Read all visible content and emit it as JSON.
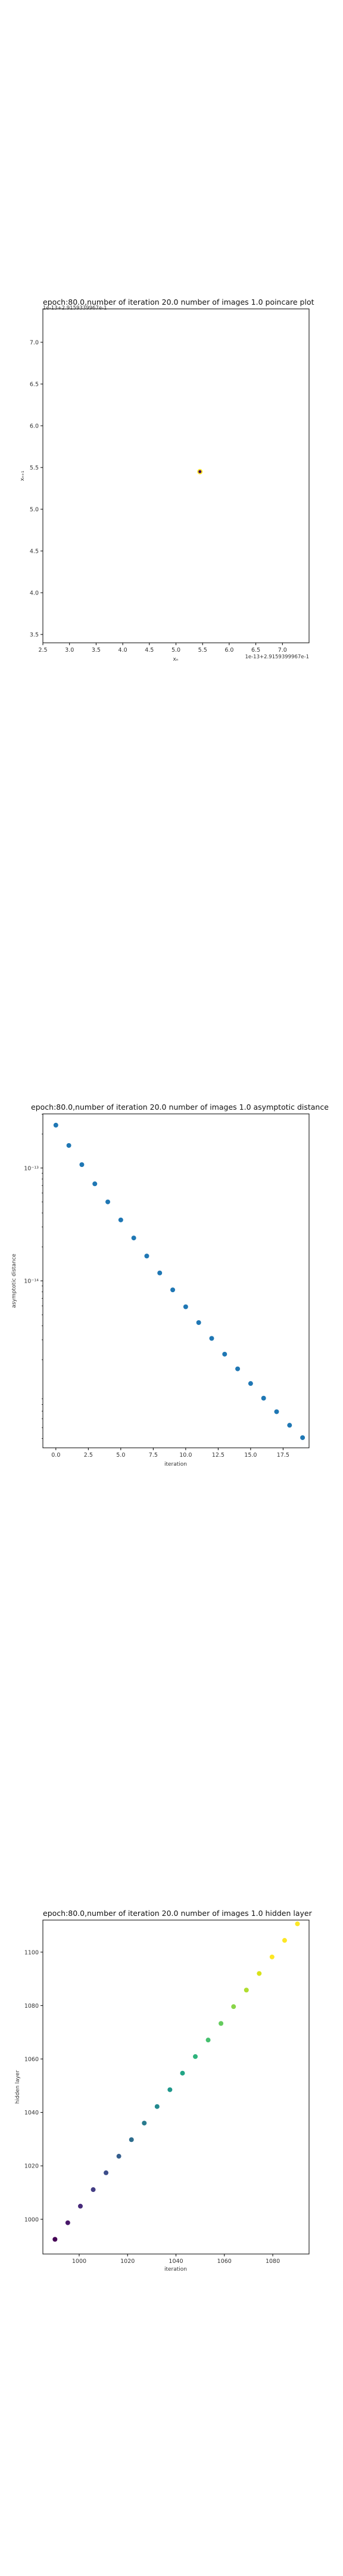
{
  "chart_data": [
    {
      "type": "scatter",
      "title": "epoch:80.0,number of iteration 20.0  number of images 1.0 poincare plot",
      "overlay_text": "1e-13+2.9159339967e-1",
      "xlabel": "xₙ",
      "ylabel": "xₙ₊₁",
      "offset_text": "1e-13+2.9159399967e-1",
      "xlim": [
        2.5,
        7.5
      ],
      "ylim": [
        3.4,
        7.4
      ],
      "xticks": [
        "2.5",
        "3.0",
        "3.5",
        "4.0",
        "4.5",
        "5.0",
        "5.5",
        "6.0",
        "6.5",
        "7.0"
      ],
      "yticks": [
        "3.5",
        "4.0",
        "4.5",
        "5.0",
        "5.5",
        "6.0",
        "6.5",
        "7.0"
      ],
      "points": [
        {
          "x": 5.45,
          "y": 5.45,
          "color": "#fde725"
        },
        {
          "x": 5.45,
          "y": 5.45,
          "color": "#440154"
        }
      ]
    },
    {
      "type": "scatter",
      "title": "epoch:80.0,number of iteration 20.0  number of images 1.0 asymptotic distance",
      "xlabel": "iteration",
      "ylabel": "asymptotic distance",
      "yscale": "log",
      "xlim": [
        -1,
        19.5
      ],
      "xticks": [
        "0.0",
        "2.5",
        "5.0",
        "7.5",
        "10.0",
        "12.5",
        "15.0",
        "17.5"
      ],
      "ytick_labels": [
        "10⁻¹³",
        "10⁻¹⁴"
      ],
      "color": "#1f77b4",
      "x": [
        0,
        1,
        2,
        3,
        4,
        5,
        6,
        7,
        8,
        9,
        10,
        11,
        12,
        13,
        14,
        15,
        16,
        17,
        18,
        19
      ],
      "log10_y": [
        -12.62,
        -12.8,
        -12.97,
        -13.14,
        -13.3,
        -13.46,
        -13.62,
        -13.78,
        -13.93,
        -14.08,
        -14.23,
        -14.37,
        -14.51,
        -14.65,
        -14.78,
        -14.91,
        -15.04,
        -15.16,
        -15.28,
        -15.39
      ]
    },
    {
      "type": "scatter",
      "title": "epoch:80.0,number of iteration 20.0  number of images 1.0 hidden layer",
      "xlabel": "iteration",
      "ylabel": "hidden layer",
      "xlim": [
        985,
        1095
      ],
      "ylim": [
        987,
        1112
      ],
      "xticks": [
        "1000",
        "1020",
        "1040",
        "1060",
        "1080"
      ],
      "yticks": [
        "1000",
        "1020",
        "1040",
        "1060",
        "1080",
        "1100"
      ],
      "colormap": "viridis",
      "x": [
        990,
        995.3,
        1000.5,
        1005.8,
        1011.1,
        1016.4,
        1021.6,
        1026.9,
        1032.2,
        1037.5,
        1042.7,
        1048.0,
        1053.3,
        1058.6,
        1063.8,
        1069.1,
        1074.4,
        1079.7,
        1084.9,
        1090.2
      ],
      "y": [
        992.5,
        998.7,
        1004.9,
        1011.1,
        1017.4,
        1023.6,
        1029.8,
        1036.0,
        1042.2,
        1048.5,
        1054.7,
        1060.9,
        1067.1,
        1073.3,
        1079.6,
        1085.8,
        1092.0,
        1098.2,
        1104.4,
        1110.6
      ],
      "colors": [
        "#440154",
        "#481769",
        "#472a7a",
        "#433d84",
        "#3d4e8a",
        "#355e8d",
        "#2e6d8e",
        "#297b8e",
        "#23898e",
        "#1f978b",
        "#21a585",
        "#2eb37c",
        "#46c06f",
        "#65cb5e",
        "#89d548",
        "#b0dd2f",
        "#d8e219",
        "#fde725",
        "#fde725",
        "#fde725"
      ]
    }
  ]
}
